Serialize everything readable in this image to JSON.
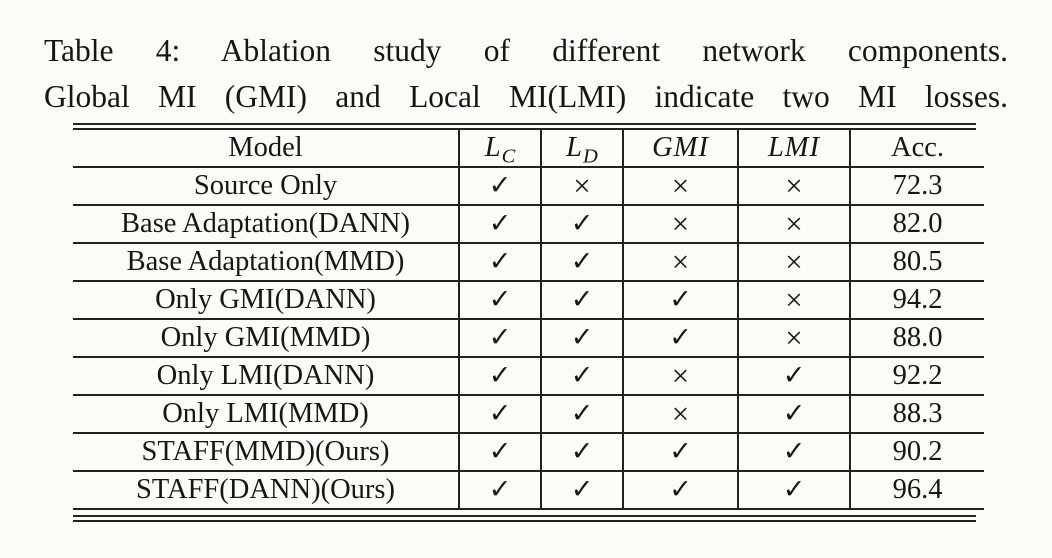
{
  "caption": {
    "line1": "Table 4: Ablation study of different network components.",
    "line2": "Global MI (GMI) and Local MI(LMI) indicate two MI losses."
  },
  "table": {
    "check_symbol": "✓",
    "cross_symbol": "×",
    "columns": [
      {
        "key": "model",
        "label": "Model",
        "math": false
      },
      {
        "key": "lc",
        "label": "L",
        "sub": "C",
        "math": true
      },
      {
        "key": "ld",
        "label": "L",
        "sub": "D",
        "math": true
      },
      {
        "key": "gmi",
        "label": "GMI",
        "math": true
      },
      {
        "key": "lmi",
        "label": "LMI",
        "math": true
      },
      {
        "key": "acc",
        "label": "Acc.",
        "math": false
      }
    ],
    "rows": [
      {
        "model": "Source Only",
        "lc": true,
        "ld": false,
        "gmi": false,
        "lmi": false,
        "acc": "72.3"
      },
      {
        "model": "Base Adaptation(DANN)",
        "lc": true,
        "ld": true,
        "gmi": false,
        "lmi": false,
        "acc": "82.0"
      },
      {
        "model": "Base Adaptation(MMD)",
        "lc": true,
        "ld": true,
        "gmi": false,
        "lmi": false,
        "acc": "80.5"
      },
      {
        "model": "Only GMI(DANN)",
        "lc": true,
        "ld": true,
        "gmi": true,
        "lmi": false,
        "acc": "94.2"
      },
      {
        "model": "Only GMI(MMD)",
        "lc": true,
        "ld": true,
        "gmi": true,
        "lmi": false,
        "acc": "88.0"
      },
      {
        "model": "Only LMI(DANN)",
        "lc": true,
        "ld": true,
        "gmi": false,
        "lmi": true,
        "acc": "92.2"
      },
      {
        "model": "Only LMI(MMD)",
        "lc": true,
        "ld": true,
        "gmi": false,
        "lmi": true,
        "acc": "88.3"
      },
      {
        "model": "STAFF(MMD)(Ours)",
        "lc": true,
        "ld": true,
        "gmi": true,
        "lmi": true,
        "acc": "90.2"
      },
      {
        "model": "STAFF(DANN)(Ours)",
        "lc": true,
        "ld": true,
        "gmi": true,
        "lmi": true,
        "acc": "96.4"
      }
    ]
  },
  "colors": {
    "text": "#161616",
    "rule": "#222222",
    "background": "#fbfbf9"
  }
}
